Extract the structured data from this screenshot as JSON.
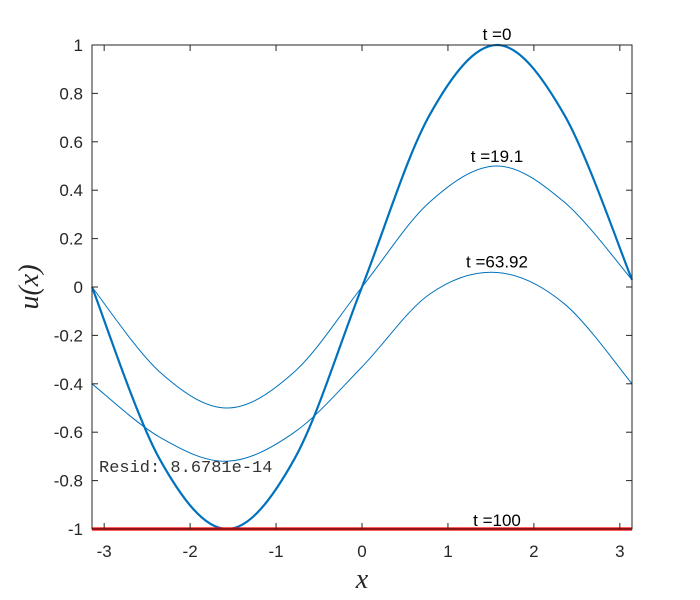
{
  "chart_data": {
    "type": "line",
    "xlabel": "x",
    "ylabel": "u(x)",
    "xlim": [
      -3.1416,
      3.1416
    ],
    "ylim": [
      -1,
      1
    ],
    "xticks": [
      -3,
      -2,
      -1,
      0,
      1,
      2,
      3
    ],
    "yticks": [
      1,
      0.8,
      0.6,
      0.4,
      0.2,
      0,
      -0.2,
      -0.4,
      -0.6,
      -0.8,
      -1
    ],
    "grid": false,
    "series": [
      {
        "name": "t =0",
        "color": "#0072BD",
        "x": [
          -3.1416,
          -2.3562,
          -1.5708,
          -0.7854,
          0,
          0.7854,
          1.5708,
          2.3562,
          3.1416
        ],
        "y": [
          0,
          -0.71,
          -1,
          -0.71,
          0,
          0.71,
          1,
          0.71,
          0.03
        ]
      },
      {
        "name": "t =19.1",
        "color": "#0072BD",
        "x": [
          -3.1416,
          -2.3562,
          -1.5708,
          -0.7854,
          0,
          0.7854,
          1.5708,
          2.3562,
          3.1416
        ],
        "y": [
          0,
          -0.35,
          -0.5,
          -0.35,
          0,
          0.35,
          0.5,
          0.35,
          0.03
        ]
      },
      {
        "name": "t =63.92",
        "color": "#0072BD",
        "x": [
          -3.1416,
          -2.3562,
          -1.5708,
          -0.7854,
          0,
          0.7854,
          1.5708,
          2.3562,
          3.1416
        ],
        "y": [
          -0.4,
          -0.62,
          -0.72,
          -0.6,
          -0.33,
          -0.03,
          0.06,
          -0.07,
          -0.4
        ]
      },
      {
        "name": "t =100",
        "color": "#FF0000",
        "x": [
          -3.1416,
          3.1416
        ],
        "y": [
          -1,
          -1
        ]
      }
    ],
    "annotations": [
      {
        "text": "t =0",
        "x": 1.5708,
        "y": 1
      },
      {
        "text": "t =19.1",
        "x": 1.5708,
        "y": 0.5
      },
      {
        "text": "t =63.92",
        "x": 1.5708,
        "y": 0.06
      },
      {
        "text": "t =100",
        "x": 1.5708,
        "y": -1
      }
    ],
    "resid_text": "Resid: 8.6781e-14"
  }
}
